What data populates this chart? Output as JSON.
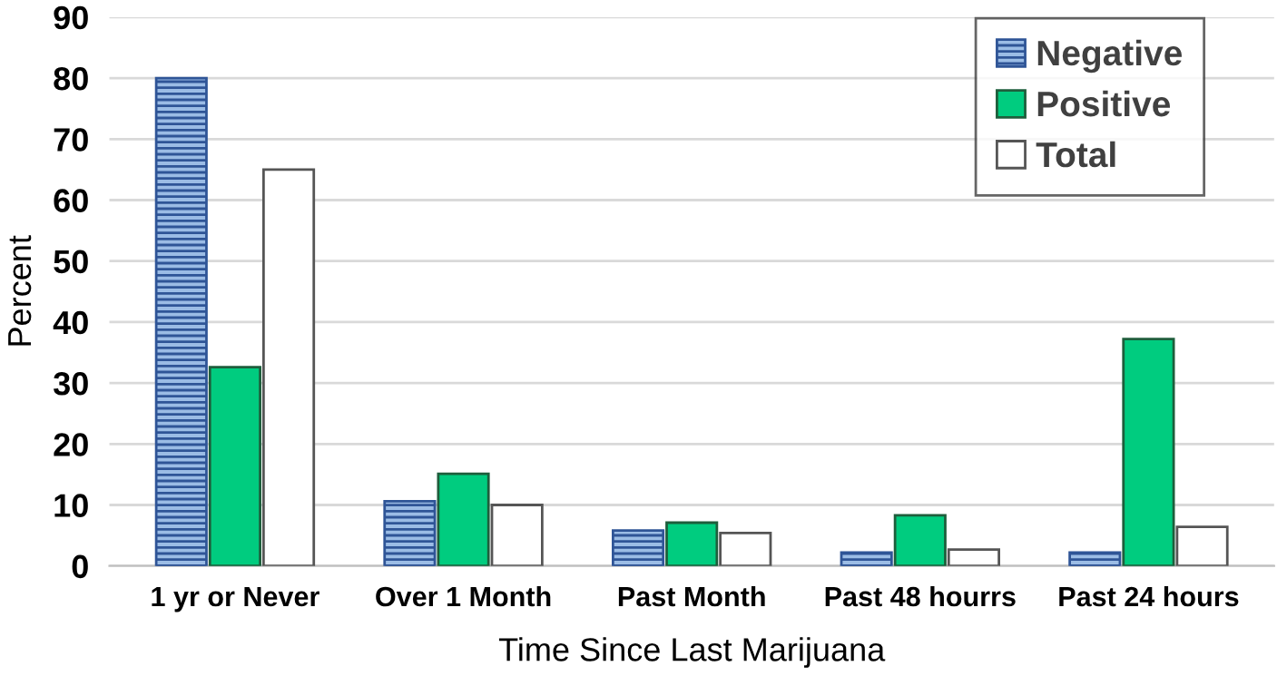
{
  "chart_data": {
    "type": "bar",
    "xlabel": "Time Since Last Marijuana",
    "ylabel": "Percent",
    "categories": [
      "1 yr or Never",
      "Over 1 Month",
      "Past Month",
      "Past 48 hourrs",
      "Past 24 hours"
    ],
    "series": [
      {
        "name": "Negative",
        "color": "#2f5597",
        "values": [
          80,
          10.6,
          5.8,
          2.2,
          2.2
        ]
      },
      {
        "name": "Positive",
        "color": "#00cc7f",
        "values": [
          32.6,
          15.1,
          7.1,
          8.3,
          37.2
        ]
      },
      {
        "name": "Total",
        "color": "#ffffff",
        "values": [
          65,
          10,
          5.4,
          2.7,
          6.4
        ]
      }
    ],
    "ylim": [
      0,
      90
    ],
    "yticks": [
      0,
      10,
      20,
      30,
      40,
      50,
      60,
      70,
      80,
      90
    ],
    "grid": "y",
    "legend": "top right"
  }
}
